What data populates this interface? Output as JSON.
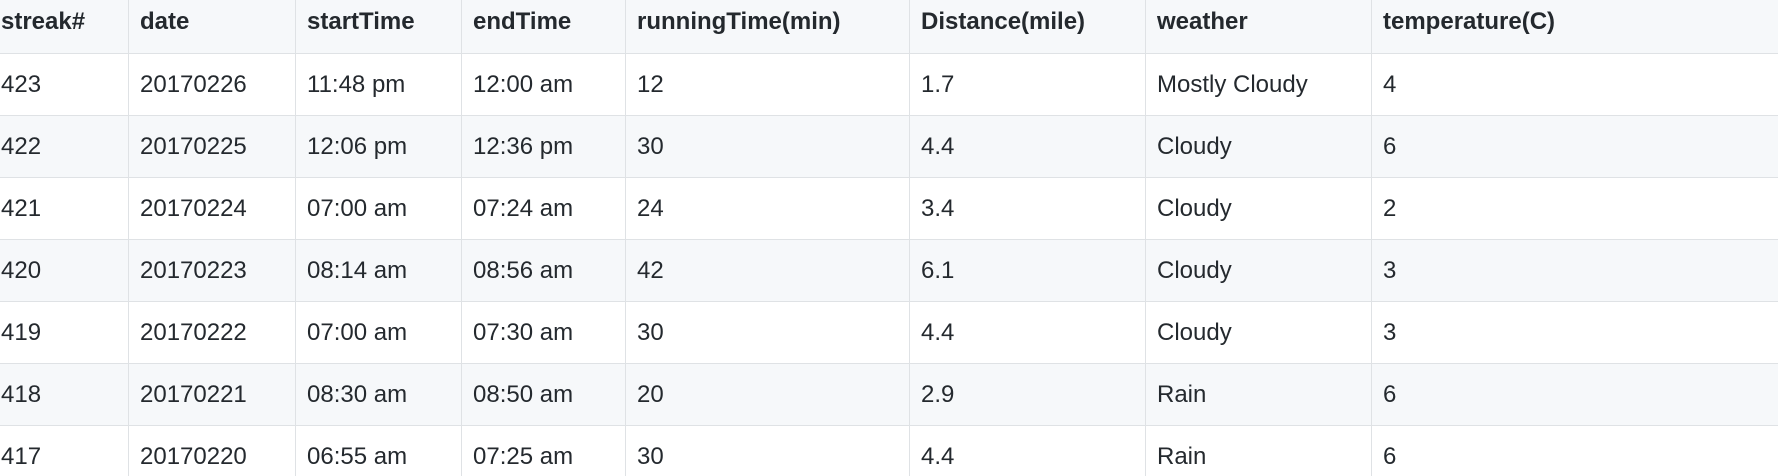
{
  "table": {
    "columns": [
      "streak#",
      "date",
      "startTime",
      "endTime",
      "runningTime(min)",
      "Distance(mile)",
      "weather",
      "temperature(C)"
    ],
    "rows": [
      [
        "423",
        "20170226",
        "11:48 pm",
        "12:00 am",
        "12",
        "1.7",
        "Mostly Cloudy",
        "4"
      ],
      [
        "422",
        "20170225",
        "12:06 pm",
        "12:36 pm",
        "30",
        "4.4",
        "Cloudy",
        "6"
      ],
      [
        "421",
        "20170224",
        "07:00 am",
        "07:24 am",
        "24",
        "3.4",
        "Cloudy",
        "2"
      ],
      [
        "420",
        "20170223",
        "08:14 am",
        "08:56 am",
        "42",
        "6.1",
        "Cloudy",
        "3"
      ],
      [
        "419",
        "20170222",
        "07:00 am",
        "07:30 am",
        "30",
        "4.4",
        "Cloudy",
        "3"
      ],
      [
        "418",
        "20170221",
        "08:30 am",
        "08:50 am",
        "20",
        "2.9",
        "Rain",
        "6"
      ],
      [
        "417",
        "20170220",
        "06:55 am",
        "07:25 am",
        "30",
        "4.4",
        "Rain",
        "6"
      ]
    ]
  },
  "colors": {
    "border": "#dfe2e5",
    "stripe": "#f6f8fa",
    "text": "#24292e"
  }
}
